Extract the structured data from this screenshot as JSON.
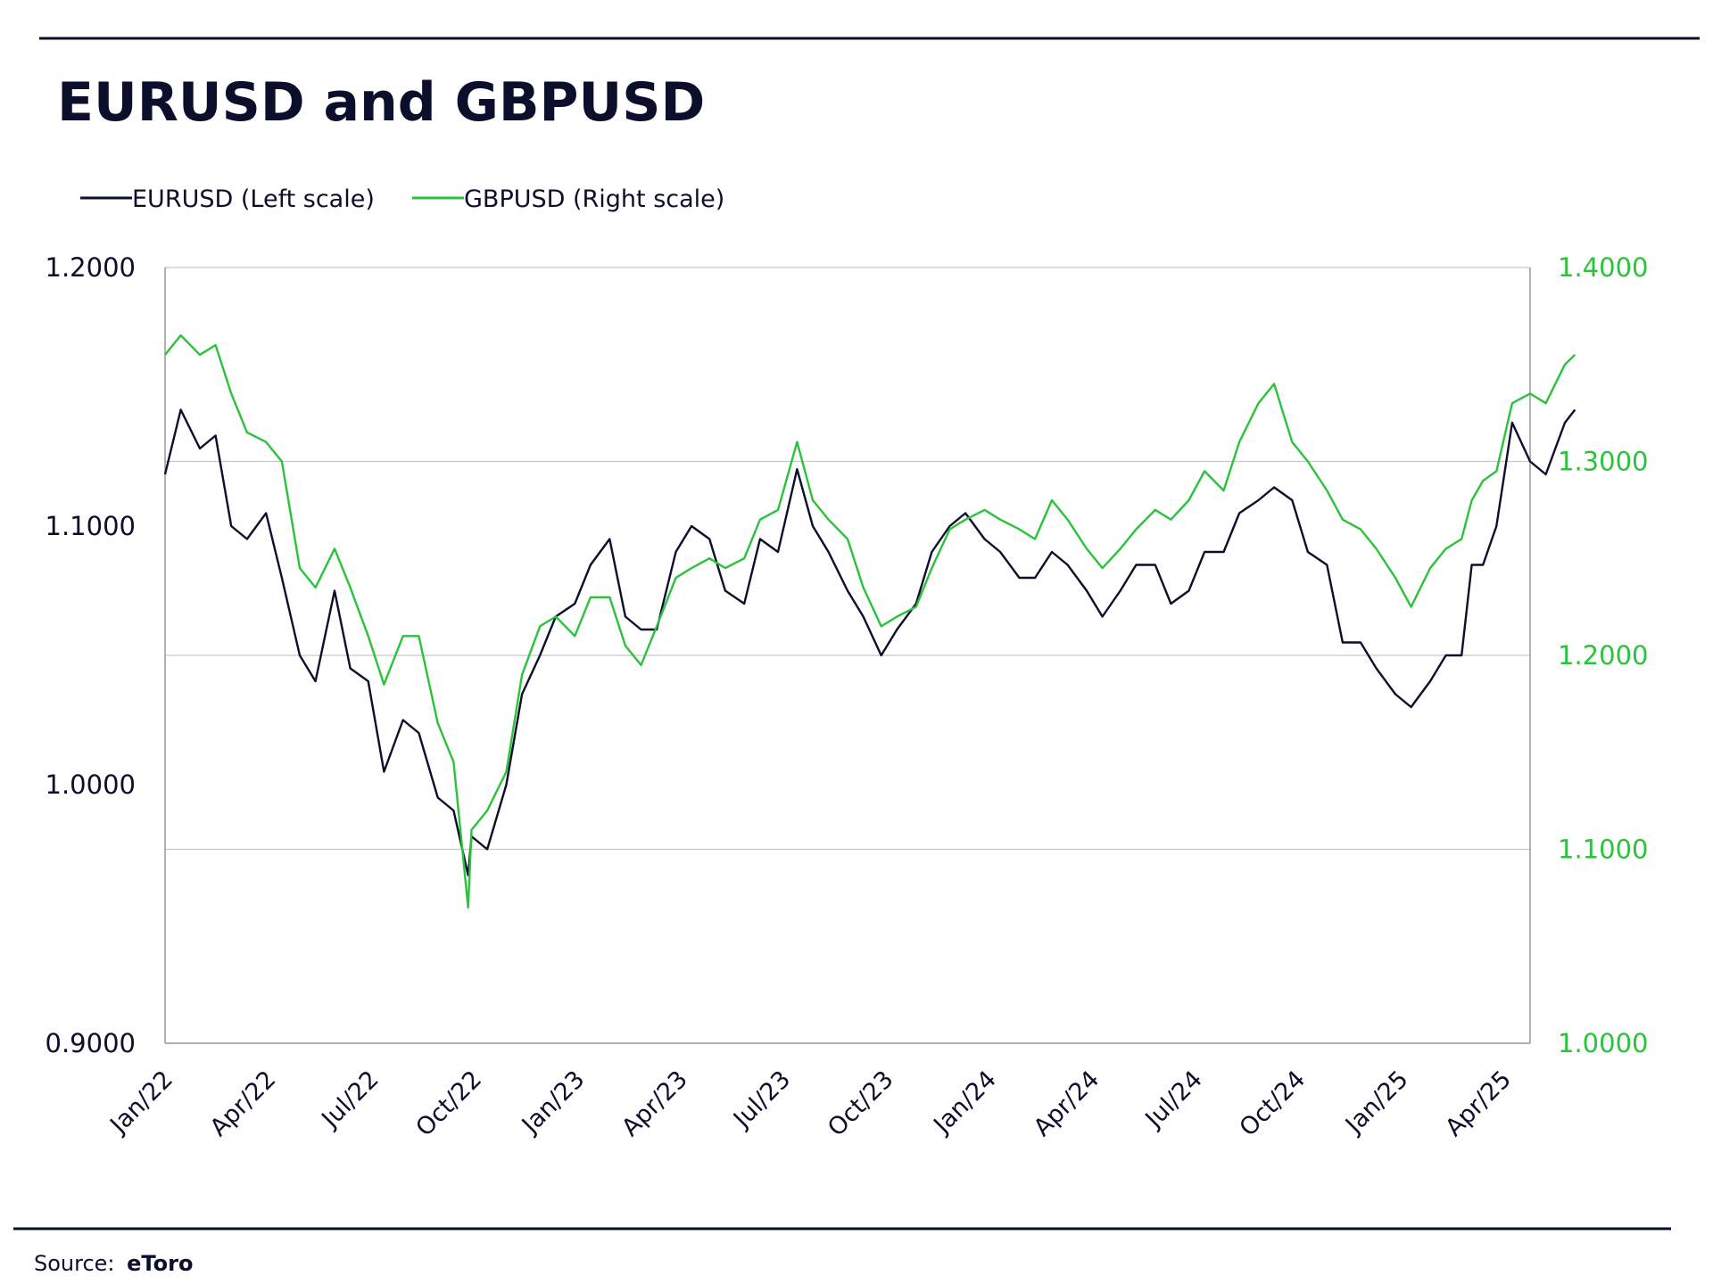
{
  "page": {
    "title": "EURUSD and GBPUSD",
    "source_label": "Source:",
    "source_name": "eToro"
  },
  "chart_data": {
    "type": "line",
    "title": "EURUSD and GBPUSD",
    "legend_position": "top-left",
    "grid": true,
    "x_ticks": [
      "Jan/22",
      "Apr/22",
      "Jul/22",
      "Oct/22",
      "Jan/23",
      "Apr/23",
      "Jul/23",
      "Oct/23",
      "Jan/24",
      "Apr/24",
      "Jul/24",
      "Oct/24",
      "Jan/25",
      "Apr/25"
    ],
    "x_range": [
      "2022-01",
      "2025-05"
    ],
    "left_axis": {
      "ylim": [
        0.9,
        1.2
      ],
      "ticks": [
        "1.2000",
        "1.1000",
        "1.0000",
        "0.9000"
      ],
      "color": "#0b0f2b"
    },
    "right_axis": {
      "ylim": [
        1.0,
        1.4
      ],
      "ticks": [
        "1.4000",
        "1.3000",
        "1.2000",
        "1.1000",
        "1.0000"
      ],
      "color": "#2bc23c"
    },
    "series": [
      {
        "name": "EURUSD (Left scale)",
        "axis": "left",
        "color": "#0b0f2b",
        "points": [
          [
            "2022-01",
            1.12
          ],
          [
            "2022-01-15",
            1.145
          ],
          [
            "2022-02",
            1.13
          ],
          [
            "2022-02-15",
            1.135
          ],
          [
            "2022-03-01",
            1.1
          ],
          [
            "2022-03-15",
            1.095
          ],
          [
            "2022-04",
            1.105
          ],
          [
            "2022-04-15",
            1.08
          ],
          [
            "2022-05",
            1.05
          ],
          [
            "2022-05-15",
            1.04
          ],
          [
            "2022-06",
            1.075
          ],
          [
            "2022-06-15",
            1.045
          ],
          [
            "2022-07",
            1.04
          ],
          [
            "2022-07-15",
            1.005
          ],
          [
            "2022-08",
            1.025
          ],
          [
            "2022-08-15",
            1.02
          ],
          [
            "2022-09",
            0.995
          ],
          [
            "2022-09-15",
            0.99
          ],
          [
            "2022-09-28",
            0.965
          ],
          [
            "2022-10",
            0.98
          ],
          [
            "2022-10-15",
            0.975
          ],
          [
            "2022-11",
            1.0
          ],
          [
            "2022-11-15",
            1.035
          ],
          [
            "2022-12",
            1.05
          ],
          [
            "2022-12-15",
            1.065
          ],
          [
            "2023-01",
            1.07
          ],
          [
            "2023-01-15",
            1.085
          ],
          [
            "2023-02",
            1.095
          ],
          [
            "2023-02-15",
            1.065
          ],
          [
            "2023-03",
            1.06
          ],
          [
            "2023-03-15",
            1.06
          ],
          [
            "2023-04",
            1.09
          ],
          [
            "2023-04-15",
            1.1
          ],
          [
            "2023-05",
            1.095
          ],
          [
            "2023-05-15",
            1.075
          ],
          [
            "2023-06",
            1.07
          ],
          [
            "2023-06-15",
            1.095
          ],
          [
            "2023-07",
            1.09
          ],
          [
            "2023-07-18",
            1.122
          ],
          [
            "2023-08",
            1.1
          ],
          [
            "2023-08-15",
            1.09
          ],
          [
            "2023-09",
            1.075
          ],
          [
            "2023-09-15",
            1.065
          ],
          [
            "2023-10",
            1.05
          ],
          [
            "2023-10-15",
            1.06
          ],
          [
            "2023-11",
            1.07
          ],
          [
            "2023-11-15",
            1.09
          ],
          [
            "2023-12",
            1.1
          ],
          [
            "2023-12-15",
            1.105
          ],
          [
            "2024-01",
            1.095
          ],
          [
            "2024-01-15",
            1.09
          ],
          [
            "2024-02",
            1.08
          ],
          [
            "2024-02-15",
            1.08
          ],
          [
            "2024-03",
            1.09
          ],
          [
            "2024-03-15",
            1.085
          ],
          [
            "2024-04",
            1.075
          ],
          [
            "2024-04-15",
            1.065
          ],
          [
            "2024-05",
            1.075
          ],
          [
            "2024-05-15",
            1.085
          ],
          [
            "2024-06",
            1.085
          ],
          [
            "2024-06-15",
            1.07
          ],
          [
            "2024-07",
            1.075
          ],
          [
            "2024-07-15",
            1.09
          ],
          [
            "2024-08",
            1.09
          ],
          [
            "2024-08-15",
            1.105
          ],
          [
            "2024-09",
            1.11
          ],
          [
            "2024-09-15",
            1.115
          ],
          [
            "2024-10",
            1.11
          ],
          [
            "2024-10-15",
            1.09
          ],
          [
            "2024-11",
            1.085
          ],
          [
            "2024-11-15",
            1.055
          ],
          [
            "2024-12",
            1.055
          ],
          [
            "2024-12-15",
            1.045
          ],
          [
            "2025-01",
            1.035
          ],
          [
            "2025-01-15",
            1.03
          ],
          [
            "2025-02",
            1.04
          ],
          [
            "2025-02-15",
            1.05
          ],
          [
            "2025-03",
            1.05
          ],
          [
            "2025-03-10",
            1.085
          ],
          [
            "2025-03-20",
            1.085
          ],
          [
            "2025-04",
            1.1
          ],
          [
            "2025-04-15",
            1.14
          ],
          [
            "2025-05",
            1.125
          ],
          [
            "2025-05-15",
            1.12
          ],
          [
            "2025-06",
            1.14
          ],
          [
            "2025-06-10",
            1.145
          ]
        ]
      },
      {
        "name": "GBPUSD (Right scale)",
        "axis": "right",
        "color": "#2bc23c",
        "points": [
          [
            "2022-01",
            1.355
          ],
          [
            "2022-01-15",
            1.365
          ],
          [
            "2022-02",
            1.355
          ],
          [
            "2022-02-15",
            1.36
          ],
          [
            "2022-03-01",
            1.335
          ],
          [
            "2022-03-15",
            1.315
          ],
          [
            "2022-04",
            1.31
          ],
          [
            "2022-04-15",
            1.3
          ],
          [
            "2022-05",
            1.245
          ],
          [
            "2022-05-15",
            1.235
          ],
          [
            "2022-06",
            1.255
          ],
          [
            "2022-06-15",
            1.235
          ],
          [
            "2022-07",
            1.21
          ],
          [
            "2022-07-15",
            1.185
          ],
          [
            "2022-08",
            1.21
          ],
          [
            "2022-08-15",
            1.21
          ],
          [
            "2022-09",
            1.165
          ],
          [
            "2022-09-15",
            1.145
          ],
          [
            "2022-09-28",
            1.07
          ],
          [
            "2022-10",
            1.11
          ],
          [
            "2022-10-15",
            1.12
          ],
          [
            "2022-11",
            1.14
          ],
          [
            "2022-11-15",
            1.19
          ],
          [
            "2022-12",
            1.215
          ],
          [
            "2022-12-15",
            1.22
          ],
          [
            "2023-01",
            1.21
          ],
          [
            "2023-01-15",
            1.23
          ],
          [
            "2023-02",
            1.23
          ],
          [
            "2023-02-15",
            1.205
          ],
          [
            "2023-03",
            1.195
          ],
          [
            "2023-03-15",
            1.215
          ],
          [
            "2023-04",
            1.24
          ],
          [
            "2023-04-15",
            1.245
          ],
          [
            "2023-05",
            1.25
          ],
          [
            "2023-05-15",
            1.245
          ],
          [
            "2023-06",
            1.25
          ],
          [
            "2023-06-15",
            1.27
          ],
          [
            "2023-07",
            1.275
          ],
          [
            "2023-07-18",
            1.31
          ],
          [
            "2023-08",
            1.28
          ],
          [
            "2023-08-15",
            1.27
          ],
          [
            "2023-09",
            1.26
          ],
          [
            "2023-09-15",
            1.235
          ],
          [
            "2023-10",
            1.215
          ],
          [
            "2023-10-15",
            1.22
          ],
          [
            "2023-11",
            1.225
          ],
          [
            "2023-11-15",
            1.245
          ],
          [
            "2023-12",
            1.265
          ],
          [
            "2023-12-15",
            1.27
          ],
          [
            "2024-01",
            1.275
          ],
          [
            "2024-01-15",
            1.27
          ],
          [
            "2024-02",
            1.265
          ],
          [
            "2024-02-15",
            1.26
          ],
          [
            "2024-03",
            1.28
          ],
          [
            "2024-03-15",
            1.27
          ],
          [
            "2024-04",
            1.255
          ],
          [
            "2024-04-15",
            1.245
          ],
          [
            "2024-05",
            1.255
          ],
          [
            "2024-05-15",
            1.265
          ],
          [
            "2024-06",
            1.275
          ],
          [
            "2024-06-15",
            1.27
          ],
          [
            "2024-07",
            1.28
          ],
          [
            "2024-07-15",
            1.295
          ],
          [
            "2024-08",
            1.285
          ],
          [
            "2024-08-15",
            1.31
          ],
          [
            "2024-09",
            1.33
          ],
          [
            "2024-09-15",
            1.34
          ],
          [
            "2024-10",
            1.31
          ],
          [
            "2024-10-15",
            1.3
          ],
          [
            "2024-11",
            1.285
          ],
          [
            "2024-11-15",
            1.27
          ],
          [
            "2024-12",
            1.265
          ],
          [
            "2024-12-15",
            1.255
          ],
          [
            "2025-01",
            1.24
          ],
          [
            "2025-01-15",
            1.225
          ],
          [
            "2025-02",
            1.245
          ],
          [
            "2025-02-15",
            1.255
          ],
          [
            "2025-03",
            1.26
          ],
          [
            "2025-03-10",
            1.28
          ],
          [
            "2025-03-20",
            1.29
          ],
          [
            "2025-04",
            1.295
          ],
          [
            "2025-04-15",
            1.33
          ],
          [
            "2025-05",
            1.335
          ],
          [
            "2025-05-15",
            1.33
          ],
          [
            "2025-06",
            1.35
          ],
          [
            "2025-06-10",
            1.355
          ]
        ]
      }
    ]
  }
}
